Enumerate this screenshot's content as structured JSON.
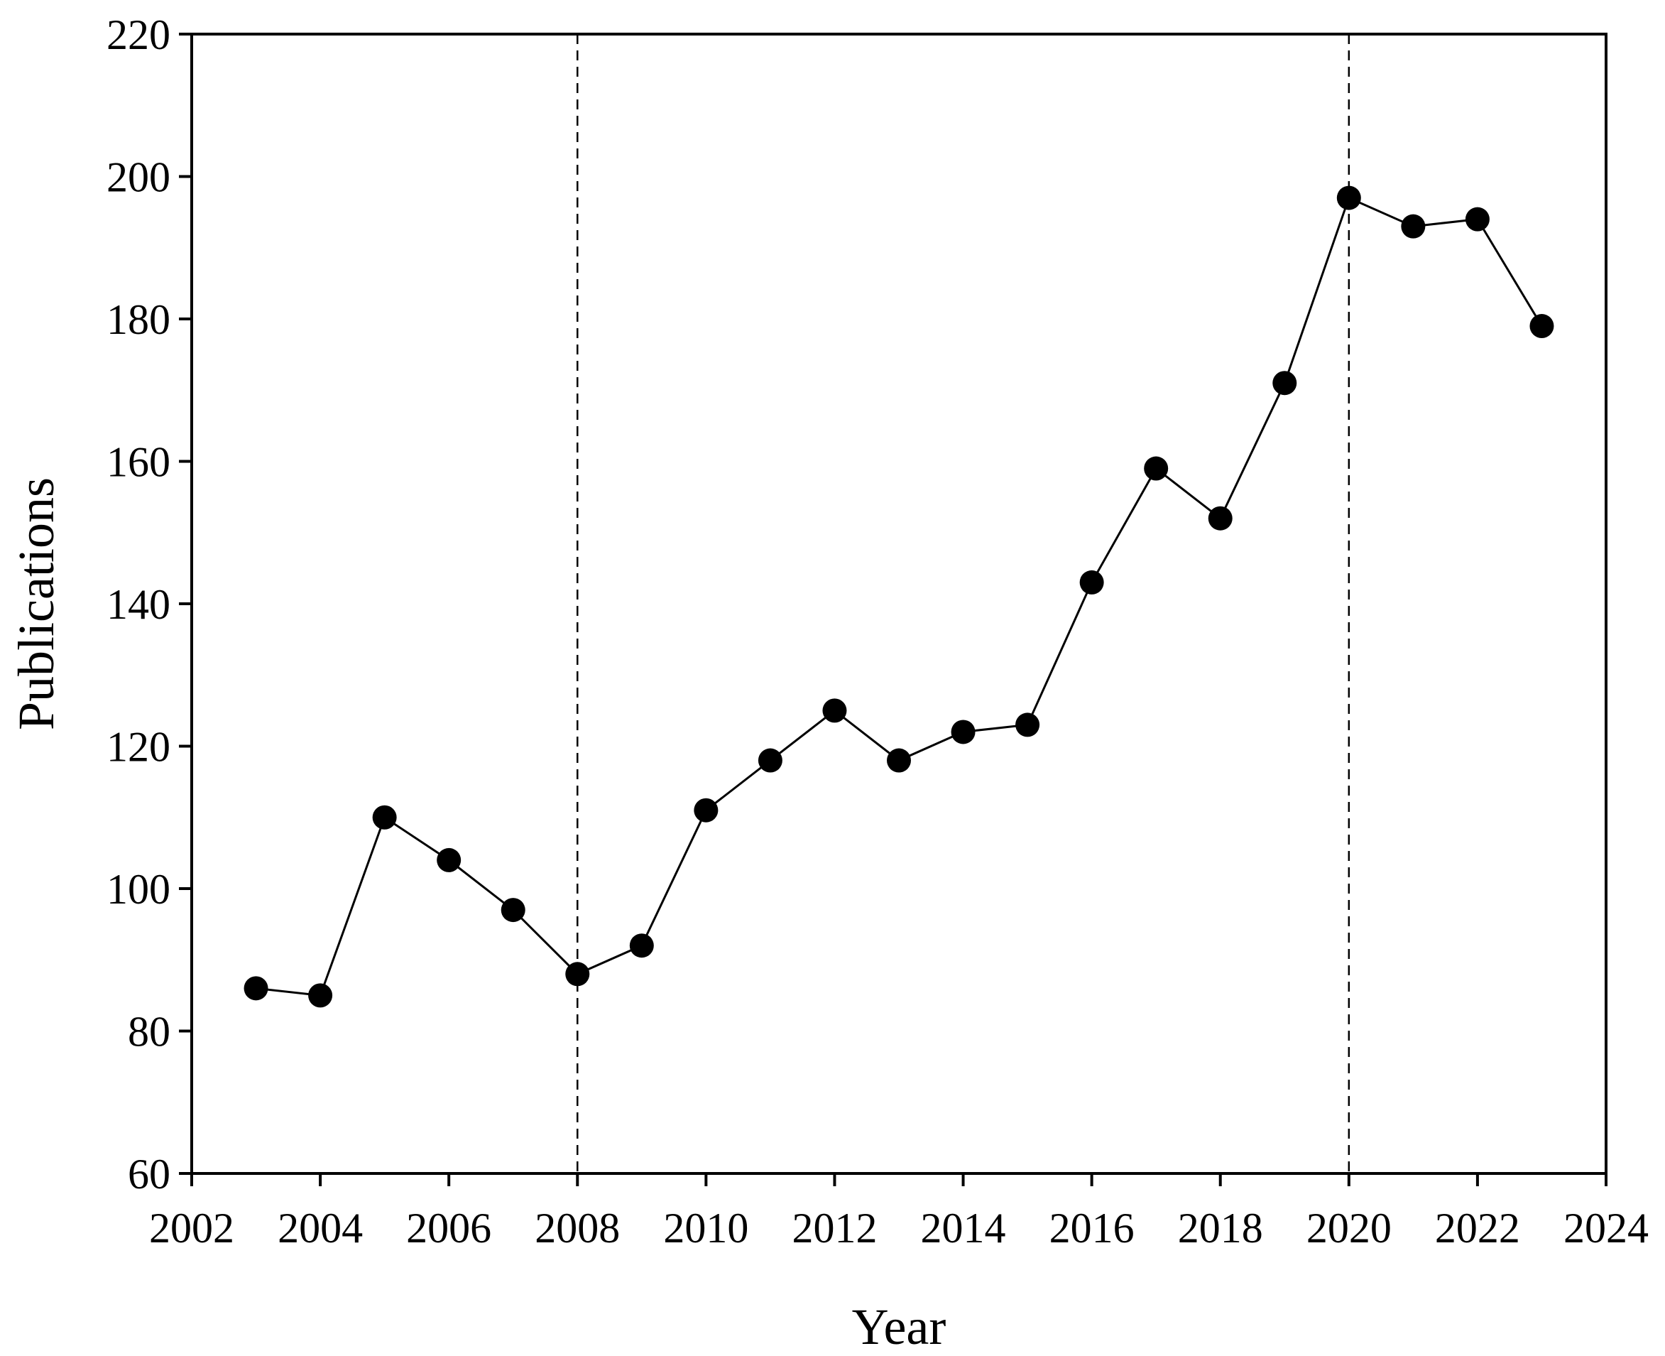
{
  "chart_data": {
    "type": "line",
    "title": "",
    "xlabel": "Year",
    "ylabel": "Publications",
    "xlim": [
      2002,
      2024
    ],
    "ylim": [
      60,
      220
    ],
    "xticks": [
      2002,
      2004,
      2006,
      2008,
      2010,
      2012,
      2014,
      2016,
      2018,
      2020,
      2022,
      2024
    ],
    "yticks": [
      60,
      80,
      100,
      120,
      140,
      160,
      180,
      200,
      220
    ],
    "grid": false,
    "legend": "none",
    "reference_lines_x": [
      2008,
      2020
    ],
    "series": [
      {
        "x": [
          2003,
          2004,
          2005,
          2006,
          2007,
          2008,
          2009,
          2010,
          2011,
          2012,
          2013,
          2014,
          2015,
          2016,
          2017,
          2018,
          2019,
          2020,
          2021,
          2022,
          2023
        ],
        "y": [
          86,
          85,
          110,
          104,
          97,
          88,
          92,
          111,
          118,
          125,
          118,
          122,
          123,
          143,
          159,
          152,
          171,
          197,
          193,
          194,
          179
        ],
        "marker": "filled-circle",
        "color": "#000000"
      }
    ]
  }
}
